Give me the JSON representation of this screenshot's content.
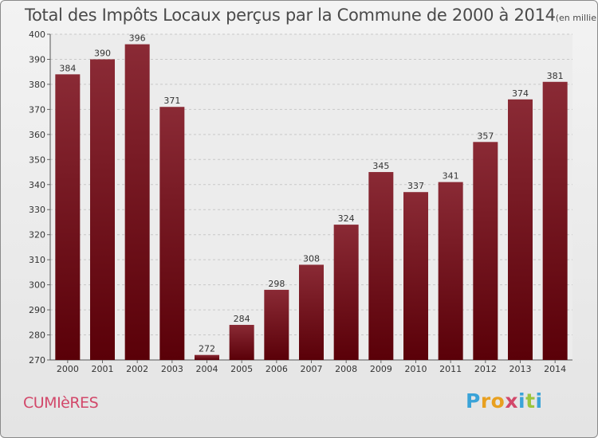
{
  "chart_data": {
    "type": "bar",
    "title": "Total des Impôts Locaux perçus par la Commune de 2000 à 2014",
    "title_unit": "(en milliers d'€)",
    "categories": [
      "2000",
      "2001",
      "2002",
      "2003",
      "2004",
      "2005",
      "2006",
      "2007",
      "2008",
      "2009",
      "2010",
      "2011",
      "2012",
      "2013",
      "2014"
    ],
    "values": [
      384,
      390,
      396,
      371,
      272,
      284,
      298,
      308,
      324,
      345,
      337,
      341,
      357,
      374,
      381
    ],
    "ylim": [
      270,
      400
    ],
    "yticks": [
      270,
      280,
      290,
      300,
      310,
      320,
      330,
      340,
      350,
      360,
      370,
      380,
      390,
      400
    ],
    "xlabel": "",
    "ylabel": "",
    "grid": true,
    "bar_color_top": "#8a2a35",
    "bar_color_bottom": "#5a0008"
  },
  "commune": "CUMIèRES",
  "logo": {
    "letters": [
      "P",
      "r",
      "o",
      "x",
      "i",
      "t",
      "i"
    ],
    "colors": [
      "#3aa3d8",
      "#e8a020",
      "#e8a020",
      "#d2486a",
      "#3aa3d8",
      "#9bc53d",
      "#3aa3d8"
    ]
  }
}
